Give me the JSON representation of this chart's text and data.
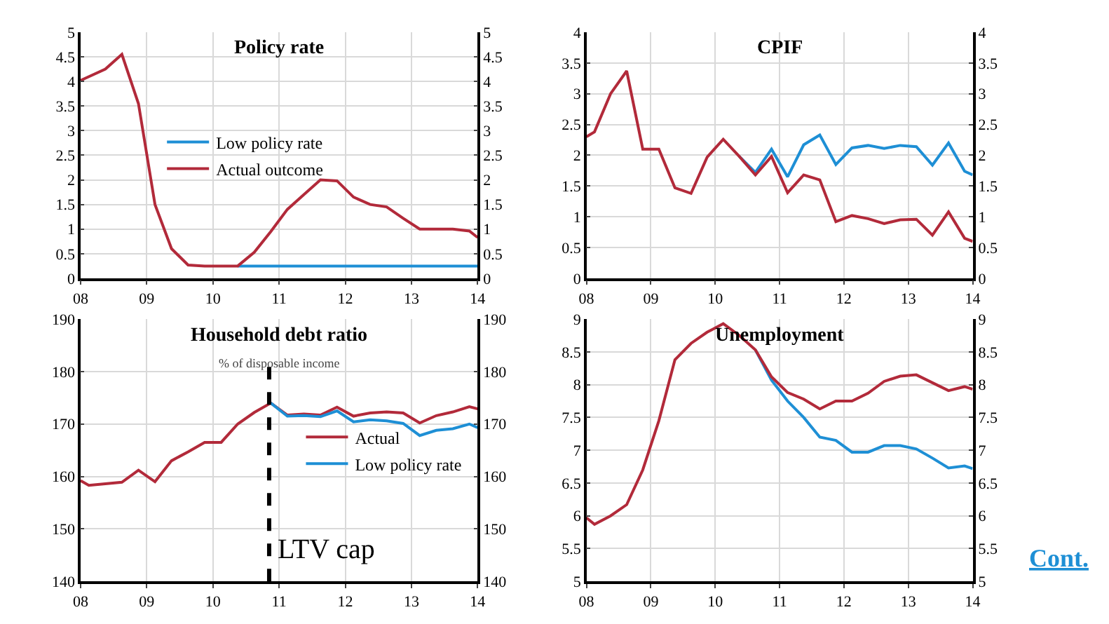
{
  "chart_data": [
    {
      "type": "line",
      "title": "Policy rate",
      "x": [
        8,
        8.375,
        8.625,
        8.875,
        9.125,
        9.375,
        9.625,
        9.875,
        10.125,
        10.375,
        10.625,
        10.875,
        11.125,
        11.375,
        11.625,
        11.875,
        12.125,
        12.375,
        12.625,
        12.875,
        13.125,
        13.375,
        13.625,
        13.875,
        14
      ],
      "series": [
        {
          "name": "Low policy rate",
          "color": "#1e8fd5",
          "values": [
            null,
            null,
            null,
            null,
            null,
            null,
            null,
            null,
            null,
            0.25,
            0.25,
            0.25,
            0.25,
            0.25,
            0.25,
            0.25,
            0.25,
            0.25,
            0.25,
            0.25,
            0.25,
            0.25,
            0.25,
            0.25,
            0.25
          ]
        },
        {
          "name": "Actual outcome",
          "color": "#b22a3a",
          "values": [
            4.02,
            4.25,
            4.55,
            3.55,
            1.5,
            0.6,
            0.27,
            0.25,
            0.25,
            0.25,
            0.53,
            0.95,
            1.4,
            1.7,
            2.0,
            1.98,
            1.65,
            1.5,
            1.45,
            1.22,
            1.0,
            1.0,
            1.0,
            0.96,
            0.83
          ]
        }
      ],
      "xlim": [
        8,
        14
      ],
      "xticks": [
        {
          "value": 8,
          "label": "08"
        },
        {
          "value": 9,
          "label": "09"
        },
        {
          "value": 10,
          "label": "10"
        },
        {
          "value": 11,
          "label": "11"
        },
        {
          "value": 12,
          "label": "12"
        },
        {
          "value": 13,
          "label": "13"
        },
        {
          "value": 14,
          "label": "14"
        }
      ],
      "ylim": [
        0,
        5
      ],
      "yticks": [
        0,
        0.5,
        1,
        1.5,
        2,
        2.5,
        3,
        3.5,
        4,
        4.5,
        5
      ],
      "y2lim": [
        0,
        5
      ],
      "y2ticks": [
        0,
        0.5,
        1,
        1.5,
        2,
        2.5,
        3,
        3.5,
        4,
        4.5,
        5
      ],
      "grid": true,
      "legend": "center",
      "marker": "none",
      "line_style": "solid"
    },
    {
      "type": "line",
      "title": "CPIF",
      "x": [
        8,
        8.125,
        8.375,
        8.625,
        8.875,
        9.125,
        9.375,
        9.625,
        9.875,
        10.125,
        10.375,
        10.625,
        10.875,
        11.125,
        11.375,
        11.625,
        11.875,
        12.125,
        12.375,
        12.625,
        12.875,
        13.125,
        13.375,
        13.625,
        13.875,
        14
      ],
      "series": [
        {
          "color": "#1e8fd5",
          "values": [
            null,
            null,
            null,
            null,
            null,
            null,
            null,
            null,
            null,
            null,
            1.98,
            1.72,
            2.1,
            1.65,
            2.17,
            2.33,
            1.85,
            2.12,
            2.16,
            2.11,
            2.16,
            2.14,
            1.84,
            2.2,
            1.74,
            1.68
          ]
        },
        {
          "color": "#b22a3a",
          "values": [
            2.3,
            2.38,
            3.0,
            3.37,
            2.1,
            2.1,
            1.47,
            1.38,
            1.97,
            2.26,
            1.98,
            1.68,
            1.98,
            1.39,
            1.68,
            1.6,
            0.92,
            1.02,
            0.97,
            0.89,
            0.95,
            0.96,
            0.7,
            1.08,
            0.65,
            0.6
          ]
        }
      ],
      "xlim": [
        8,
        14
      ],
      "xticks": [
        {
          "value": 8,
          "label": "08"
        },
        {
          "value": 9,
          "label": "09"
        },
        {
          "value": 10,
          "label": "10"
        },
        {
          "value": 11,
          "label": "11"
        },
        {
          "value": 12,
          "label": "12"
        },
        {
          "value": 13,
          "label": "13"
        },
        {
          "value": 14,
          "label": "14"
        }
      ],
      "ylim": [
        0,
        4
      ],
      "yticks": [
        0,
        0.5,
        1,
        1.5,
        2,
        2.5,
        3,
        3.5,
        4
      ],
      "y2lim": [
        0,
        4
      ],
      "y2ticks": [
        0,
        0.5,
        1,
        1.5,
        2,
        2.5,
        3,
        3.5,
        4
      ],
      "grid": true,
      "marker": "none",
      "line_style": "solid"
    },
    {
      "type": "line",
      "title": "Household debt ratio",
      "subtitle": "% of disposable income",
      "x": [
        8,
        8.125,
        8.375,
        8.625,
        8.875,
        9.125,
        9.375,
        9.625,
        9.875,
        10.125,
        10.375,
        10.625,
        10.875,
        11.125,
        11.375,
        11.625,
        11.875,
        12.125,
        12.375,
        12.625,
        12.875,
        13.125,
        13.375,
        13.625,
        13.875,
        14
      ],
      "series": [
        {
          "name": "Actual",
          "color": "#b22a3a",
          "values": [
            159.2,
            158.3,
            158.6,
            158.9,
            161.2,
            159,
            163,
            164.7,
            166.5,
            166.5,
            170,
            172.2,
            174,
            171.7,
            171.9,
            171.7,
            173.2,
            171.5,
            172.1,
            172.3,
            172.1,
            170.2,
            171.6,
            172.3,
            173.3,
            172.9
          ]
        },
        {
          "name": "Low policy rate",
          "color": "#1e8fd5",
          "values": [
            null,
            null,
            null,
            null,
            null,
            null,
            null,
            null,
            null,
            null,
            null,
            null,
            174,
            171.5,
            171.6,
            171.4,
            172.5,
            170.4,
            170.8,
            170.6,
            170.1,
            167.8,
            168.8,
            169.1,
            170,
            169.3
          ]
        }
      ],
      "xlim": [
        8,
        14
      ],
      "xticks": [
        {
          "value": 8,
          "label": "08"
        },
        {
          "value": 9,
          "label": "09"
        },
        {
          "value": 10,
          "label": "10"
        },
        {
          "value": 11,
          "label": "11"
        },
        {
          "value": 12,
          "label": "12"
        },
        {
          "value": 13,
          "label": "13"
        },
        {
          "value": 14,
          "label": "14"
        }
      ],
      "ylim": [
        140,
        190
      ],
      "yticks": [
        140,
        150,
        160,
        170,
        180,
        190
      ],
      "y2lim": [
        140,
        190
      ],
      "y2ticks": [
        140,
        150,
        160,
        170,
        180,
        190
      ],
      "ref_lines": [
        {
          "axis": "x",
          "value": 10.85,
          "label": "LTV cap",
          "color": "#000000",
          "line_style": "dashed"
        }
      ],
      "grid": true,
      "legend": "center right",
      "marker": "none",
      "line_style": "solid"
    },
    {
      "type": "line",
      "title": "Unemployment",
      "x": [
        8,
        8.125,
        8.375,
        8.625,
        8.875,
        9.125,
        9.375,
        9.625,
        9.875,
        10.125,
        10.375,
        10.625,
        10.875,
        11.125,
        11.375,
        11.625,
        11.875,
        12.125,
        12.375,
        12.625,
        12.875,
        13.125,
        13.375,
        13.625,
        13.875,
        14
      ],
      "series": [
        {
          "color": "#1e8fd5",
          "values": [
            null,
            null,
            null,
            null,
            null,
            null,
            null,
            null,
            null,
            null,
            null,
            8.53,
            8.07,
            7.75,
            7.5,
            7.2,
            7.15,
            6.97,
            6.97,
            7.07,
            7.07,
            7.02,
            6.88,
            6.73,
            6.76,
            6.72
          ]
        },
        {
          "color": "#b22a3a",
          "values": [
            5.97,
            5.87,
            6.0,
            6.17,
            6.7,
            7.45,
            8.38,
            8.63,
            8.8,
            8.93,
            8.75,
            8.53,
            8.12,
            7.88,
            7.78,
            7.63,
            7.75,
            7.75,
            7.87,
            8.05,
            8.13,
            8.15,
            8.03,
            7.91,
            7.97,
            7.93
          ]
        }
      ],
      "xlim": [
        8,
        14
      ],
      "xticks": [
        {
          "value": 8,
          "label": "08"
        },
        {
          "value": 9,
          "label": "09"
        },
        {
          "value": 10,
          "label": "10"
        },
        {
          "value": 11,
          "label": "11"
        },
        {
          "value": 12,
          "label": "12"
        },
        {
          "value": 13,
          "label": "13"
        },
        {
          "value": 14,
          "label": "14"
        }
      ],
      "ylim": [
        5,
        9
      ],
      "yticks": [
        5,
        5.5,
        6,
        6.5,
        7,
        7.5,
        8,
        8.5,
        9
      ],
      "y2lim": [
        5,
        9
      ],
      "y2ticks": [
        5,
        5.5,
        6,
        6.5,
        7,
        7.5,
        8,
        8.5,
        9
      ],
      "annotations": [
        "Cont."
      ],
      "grid": true,
      "marker": "none",
      "line_style": "solid"
    }
  ]
}
